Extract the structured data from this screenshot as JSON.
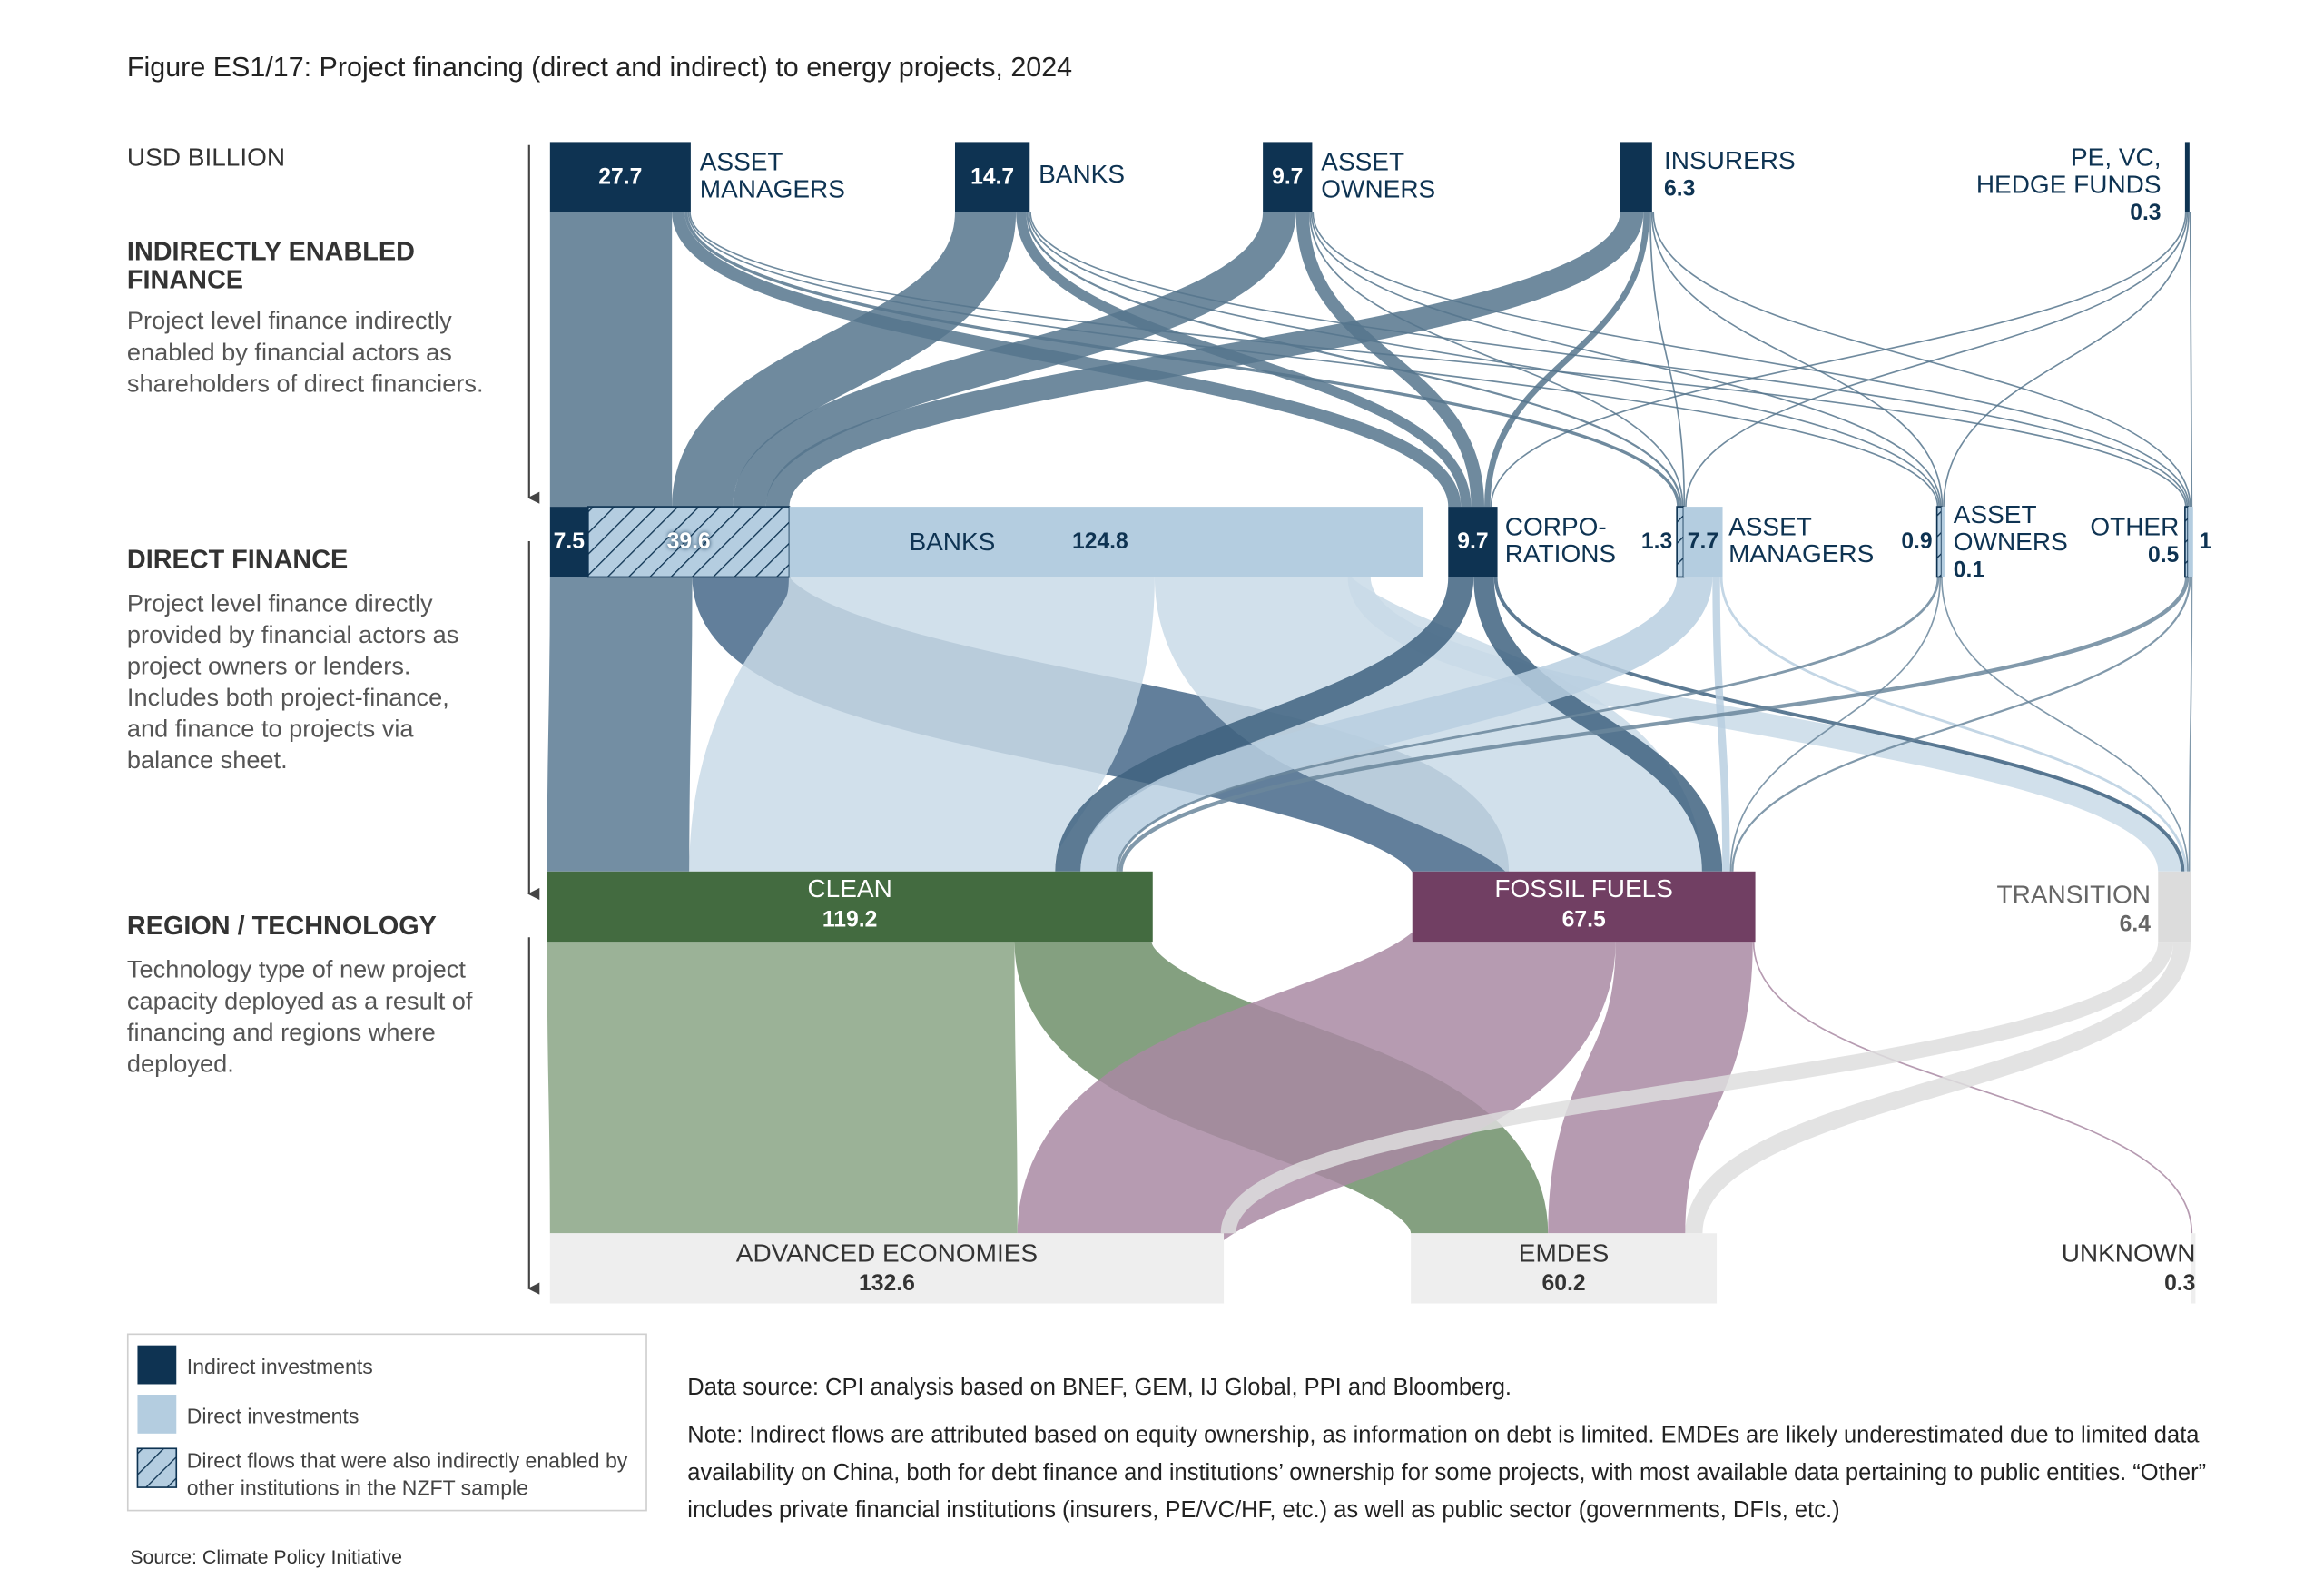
{
  "chart_data": {
    "type": "sankey",
    "title": "Figure ES1/17: Project financing (direct and indirect) to energy projects, 2024",
    "unit": "USD BILLION",
    "levels": [
      {
        "title": "INDIRECTLY ENABLED\nFINANCE",
        "description": "Project level finance indirectly enabled by financial actors as shareholders of direct financiers."
      },
      {
        "title": "DIRECT FINANCE",
        "description": "Project level finance directly provided by financial actors as project owners or lenders. Includes both project-finance, and finance to projects via balance sheet."
      },
      {
        "title": "REGION / TECHNOLOGY",
        "description": "Technology type of new project capacity deployed as a result of financing and regions where deployed."
      }
    ],
    "kind_colors": {
      "indirect": "#0e3352",
      "direct": "#b4cde0",
      "hatched": "#b4cde0"
    },
    "nodes": [
      {
        "name": "ASSET\nMANAGERS",
        "value": 27.7,
        "kind": "indirect"
      },
      {
        "name": "BANKS",
        "value": 14.7,
        "kind": "indirect"
      },
      {
        "name": "ASSET\nOWNERS",
        "value": 9.7,
        "kind": "indirect"
      },
      {
        "name": "INSURERS",
        "value": 6.3,
        "kind": "indirect"
      },
      {
        "name": "PE, VC,\nHEDGE FUNDS",
        "value": 0.3,
        "kind": "indirect"
      },
      {
        "name": "BANKS",
        "segments": [
          {
            "value": 7.5,
            "kind": "indirect"
          },
          {
            "value": 39.6,
            "kind": "hatched"
          },
          {
            "value": 124.8,
            "kind": "direct"
          }
        ]
      },
      {
        "name": "CORPO-\nRATIONS",
        "value": 9.7,
        "kind": "indirect"
      },
      {
        "name": "ASSET\nMANAGERS",
        "segments": [
          {
            "value": 1.3,
            "kind": "hatched"
          },
          {
            "value": 7.7,
            "kind": "direct"
          }
        ]
      },
      {
        "name": "ASSET\nOWNERS",
        "segments": [
          {
            "value": 0.9,
            "kind": "hatched"
          },
          {
            "value": 0.1,
            "kind": "direct"
          }
        ]
      },
      {
        "name": "OTHER",
        "segments": [
          {
            "value": 0.5,
            "kind": "hatched"
          },
          {
            "value": 1,
            "kind": "direct"
          }
        ]
      },
      {
        "name": "CLEAN",
        "value": 119.2,
        "color": "#436b40"
      },
      {
        "name": "FOSSIL FUELS",
        "value": 67.5,
        "color": "#713f63"
      },
      {
        "name": "TRANSITION",
        "value": 6.4,
        "color": "#dcdcdc"
      },
      {
        "name": "ADVANCED ECONOMIES",
        "value": 132.6,
        "color": "#eeeeee"
      },
      {
        "name": "EMDES",
        "value": 60.2,
        "color": "#eeeeee"
      },
      {
        "name": "UNKNOWN",
        "value": 0.3,
        "color": "#eeeeee"
      }
    ],
    "links": [
      {
        "source": 0,
        "target": 5,
        "value": 24,
        "color": "#56758d"
      },
      {
        "source": 0,
        "target": 6,
        "value": 2.5,
        "color": "#56758d"
      },
      {
        "source": 0,
        "target": 7,
        "value": 0.6,
        "color": "#56758d"
      },
      {
        "source": 0,
        "target": 8,
        "value": 0.3,
        "color": "#56758d"
      },
      {
        "source": 0,
        "target": 9,
        "value": 0.3,
        "color": "#56758d"
      },
      {
        "source": 1,
        "target": 5,
        "value": 12,
        "color": "#56758d"
      },
      {
        "source": 1,
        "target": 6,
        "value": 2,
        "color": "#56758d"
      },
      {
        "source": 1,
        "target": 7,
        "value": 0.4,
        "color": "#56758d"
      },
      {
        "source": 1,
        "target": 8,
        "value": 0.2,
        "color": "#56758d"
      },
      {
        "source": 1,
        "target": 9,
        "value": 0.1,
        "color": "#56758d"
      },
      {
        "source": 2,
        "target": 5,
        "value": 6.5,
        "color": "#56758d"
      },
      {
        "source": 2,
        "target": 6,
        "value": 2.6,
        "color": "#56758d"
      },
      {
        "source": 2,
        "target": 7,
        "value": 0.3,
        "color": "#56758d"
      },
      {
        "source": 2,
        "target": 8,
        "value": 0.2,
        "color": "#56758d"
      },
      {
        "source": 2,
        "target": 9,
        "value": 0.1,
        "color": "#56758d"
      },
      {
        "source": 3,
        "target": 5,
        "value": 4.6,
        "color": "#56758d"
      },
      {
        "source": 3,
        "target": 6,
        "value": 1.2,
        "color": "#56758d"
      },
      {
        "source": 3,
        "target": 7,
        "value": 0.3,
        "color": "#56758d"
      },
      {
        "source": 3,
        "target": 8,
        "value": 0.1,
        "color": "#56758d"
      },
      {
        "source": 3,
        "target": 9,
        "value": 0.1,
        "color": "#56758d"
      },
      {
        "source": 4,
        "target": 6,
        "value": 0.1,
        "color": "#56758d"
      },
      {
        "source": 4,
        "target": 7,
        "value": 0.1,
        "color": "#56758d"
      },
      {
        "source": 4,
        "target": 8,
        "value": 0.05,
        "color": "#56758d"
      },
      {
        "source": 4,
        "target": 9,
        "value": 0.05,
        "color": "#56758d"
      },
      {
        "source": 5,
        "target": 10,
        "value": 28,
        "color": "#5b7a93"
      },
      {
        "source": 5,
        "target": 11,
        "value": 19,
        "color": "#46698a"
      },
      {
        "source": 5,
        "target": 10,
        "value": 72,
        "color": "#c9dbe8"
      },
      {
        "source": 5,
        "target": 11,
        "value": 38,
        "color": "#c9dbe8"
      },
      {
        "source": 5,
        "target": 12,
        "value": 4.5,
        "color": "#c9dbe8"
      },
      {
        "source": 6,
        "target": 10,
        "value": 5,
        "color": "#3f6380"
      },
      {
        "source": 6,
        "target": 11,
        "value": 4,
        "color": "#3f6380"
      },
      {
        "source": 6,
        "target": 12,
        "value": 0.7,
        "color": "#3f6380"
      },
      {
        "source": 7,
        "target": 10,
        "value": 7,
        "color": "#b9cfe0"
      },
      {
        "source": 7,
        "target": 11,
        "value": 1.5,
        "color": "#b9cfe0"
      },
      {
        "source": 7,
        "target": 12,
        "value": 0.5,
        "color": "#b9cfe0"
      },
      {
        "source": 8,
        "target": 10,
        "value": 0.5,
        "color": "#6b879c"
      },
      {
        "source": 8,
        "target": 11,
        "value": 0.3,
        "color": "#6b879c"
      },
      {
        "source": 8,
        "target": 12,
        "value": 0.2,
        "color": "#6b879c"
      },
      {
        "source": 9,
        "target": 10,
        "value": 0.8,
        "color": "#6b879c"
      },
      {
        "source": 9,
        "target": 11,
        "value": 0.4,
        "color": "#6b879c"
      },
      {
        "source": 9,
        "target": 12,
        "value": 0.3,
        "color": "#6b879c"
      },
      {
        "source": 10,
        "target": 13,
        "value": 92,
        "color": "#8aa585"
      },
      {
        "source": 10,
        "target": 14,
        "value": 27,
        "color": "#6f8f6a"
      },
      {
        "source": 11,
        "target": 13,
        "value": 40,
        "color": "#a98aa3"
      },
      {
        "source": 11,
        "target": 14,
        "value": 27,
        "color": "#a98aa3"
      },
      {
        "source": 11,
        "target": 15,
        "value": 0.3,
        "color": "#a98aa3"
      },
      {
        "source": 12,
        "target": 13,
        "value": 3,
        "color": "#dedede"
      },
      {
        "source": 12,
        "target": 14,
        "value": 3.4,
        "color": "#dedede"
      }
    ],
    "legend": [
      {
        "label": "Indirect investments",
        "kind": "indirect"
      },
      {
        "label": "Direct investments",
        "kind": "direct"
      },
      {
        "label": "Direct flows that were also indirectly enabled by other institutions in the NZFT sample",
        "kind": "hatched"
      }
    ],
    "data_source": "Data source: CPI analysis based on BNEF, GEM, IJ Global, PPI and Bloomberg.",
    "note": "Note: Indirect flows are attributed based on equity ownership, as information on debt is limited. EMDEs are likely underestimated due to limited data availability on China, both for debt finance and institutions’ ownership for some projects, with most available data pertaining to public entities. “Other” includes private financial institutions (insurers, PE/VC/HF, etc.) as well as public sector (governments, DFIs, etc.)",
    "source": "Source: Climate Policy Initiative"
  }
}
